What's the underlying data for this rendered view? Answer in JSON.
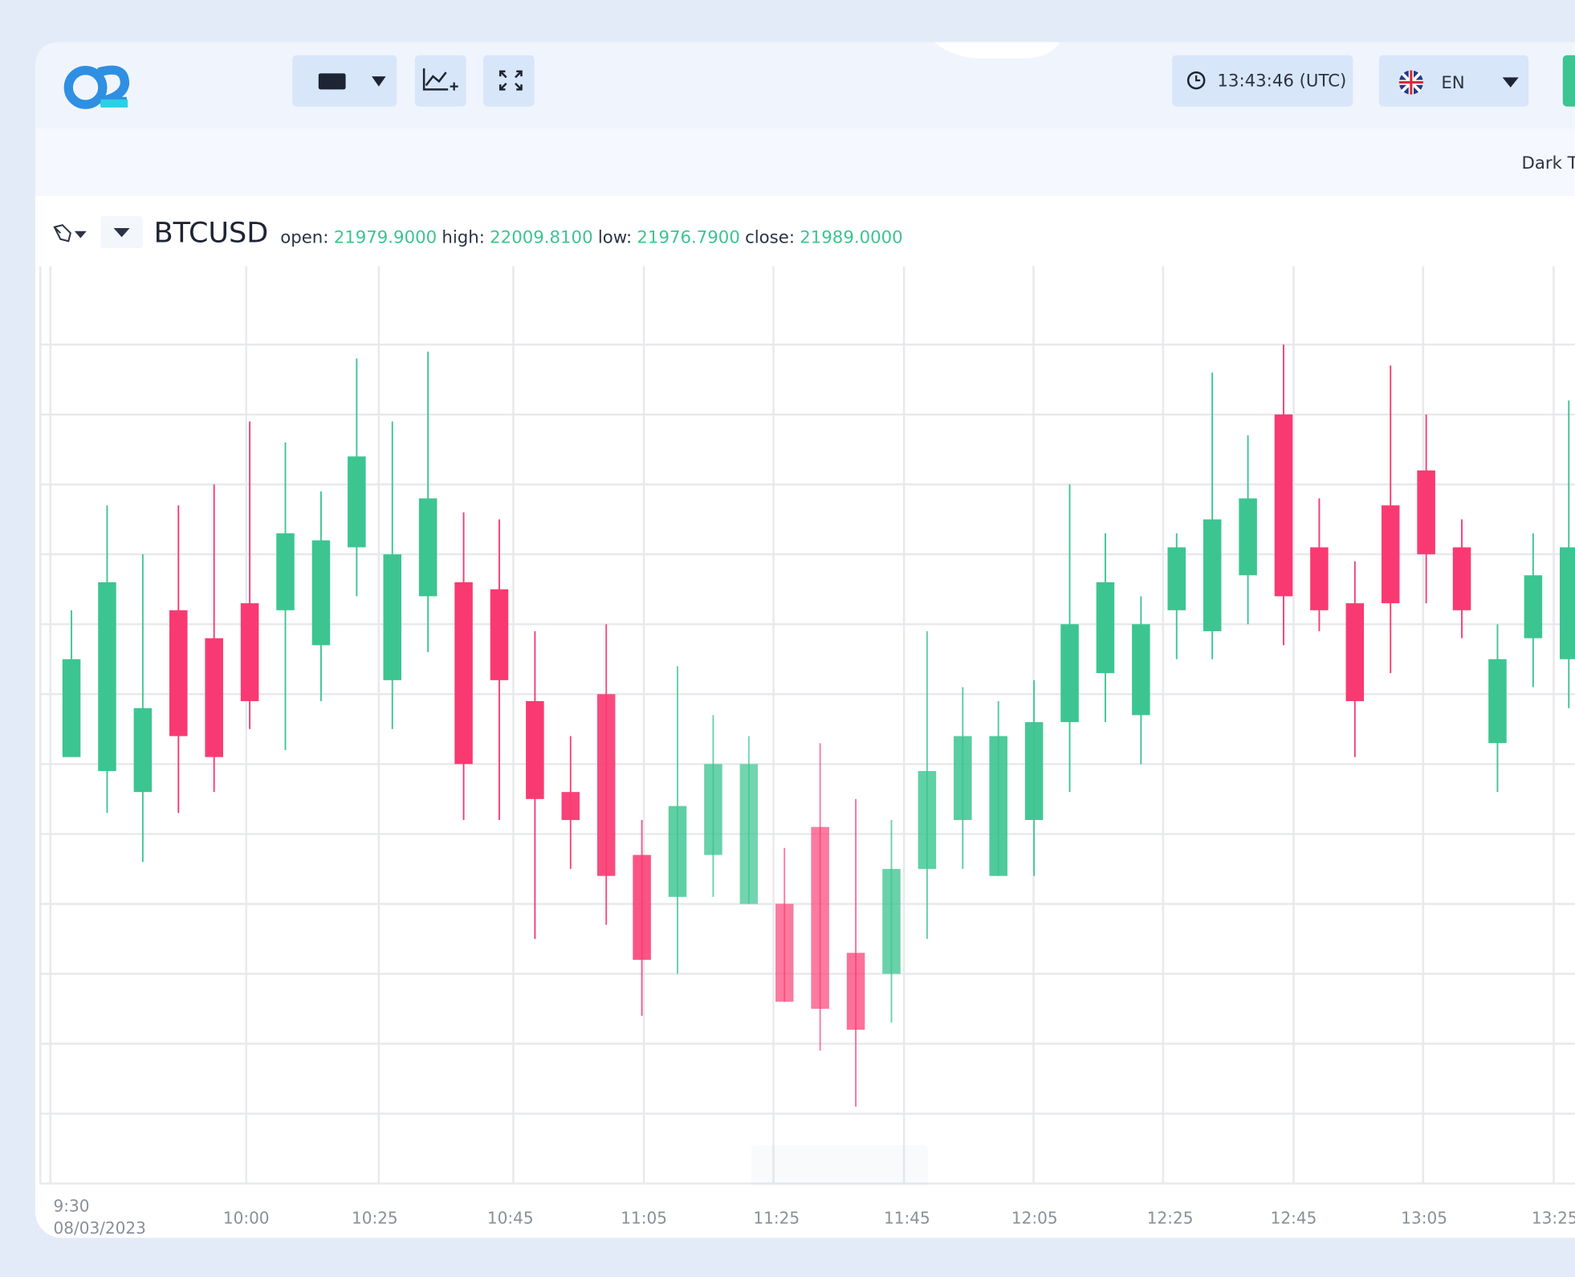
{
  "header": {
    "time": "13:43:46 (UTC)",
    "language": "EN",
    "theme_label": "Dark T"
  },
  "chart_data": {
    "type": "candlestick",
    "title": "BTCUSD",
    "ohlc_labels": [
      {
        "label": "open:",
        "value": "21979.9000"
      },
      {
        "label": "high:",
        "value": "22009.8100"
      },
      {
        "label": "low:",
        "value": "21976.7900"
      },
      {
        "label": "close:",
        "value": "21989.0000"
      }
    ],
    "xticks": [
      "9:30",
      "10:00",
      "10:25",
      "10:45",
      "11:05",
      "11:25",
      "11:45",
      "12:05",
      "12:25",
      "12:45",
      "13:05",
      "13:25"
    ],
    "date": "08/03/2023",
    "open": [
      21961,
      21959,
      21956,
      21982,
      21978,
      21983,
      21982,
      21977,
      21991,
      21972,
      21984,
      21986,
      21985,
      21969,
      21956,
      21970,
      21947,
      21941,
      21947,
      21940,
      21940,
      21951,
      21933,
      21930,
      21945,
      21952,
      21944,
      21952,
      21966,
      21973,
      21967,
      21982,
      21979,
      21987,
      22010,
      21991,
      21983,
      21997,
      22002,
      21991,
      21963,
      21978,
      21975
    ],
    "high": [
      21982,
      21997,
      21990,
      21997,
      22000,
      22009,
      22006,
      21999,
      22018,
      22009,
      22019,
      21996,
      21995,
      21979,
      21964,
      21980,
      21952,
      21974,
      21967,
      21964,
      21948,
      21963,
      21955,
      21952,
      21979,
      21971,
      21969,
      21972,
      22000,
      21993,
      21984,
      21993,
      22016,
      22007,
      22020,
      21998,
      21989,
      22017,
      22010,
      21995,
      21980,
      21993,
      22012
    ],
    "low": [
      21961,
      21953,
      21946,
      21953,
      21956,
      21965,
      21962,
      21969,
      21984,
      21965,
      21976,
      21952,
      21952,
      21935,
      21945,
      21937,
      21924,
      21930,
      21941,
      21940,
      21926,
      21919,
      21911,
      21923,
      21935,
      21945,
      21944,
      21944,
      21956,
      21966,
      21960,
      21975,
      21975,
      21980,
      21977,
      21979,
      21961,
      21973,
      21983,
      21978,
      21956,
      21971,
      21968
    ],
    "close": [
      21975,
      21986,
      21968,
      21964,
      21961,
      21969,
      21993,
      21992,
      22004,
      21990,
      21998,
      21960,
      21972,
      21955,
      21952,
      21944,
      21932,
      21954,
      21960,
      21960,
      21926,
      21925,
      21922,
      21945,
      21959,
      21964,
      21964,
      21966,
      21980,
      21986,
      21980,
      21991,
      21995,
      21998,
      21984,
      21982,
      21969,
      21983,
      21990,
      21982,
      21975,
      21987,
      21991
    ],
    "up_color": "#3cc591",
    "down_color": "#f93a72",
    "ylim": [
      21900,
      22031.2
    ],
    "yticks": [
      21900,
      21910,
      21920,
      21930,
      21940,
      21950,
      21960,
      21970,
      21980,
      21990,
      22000,
      22010,
      22020
    ],
    "grid": true
  }
}
